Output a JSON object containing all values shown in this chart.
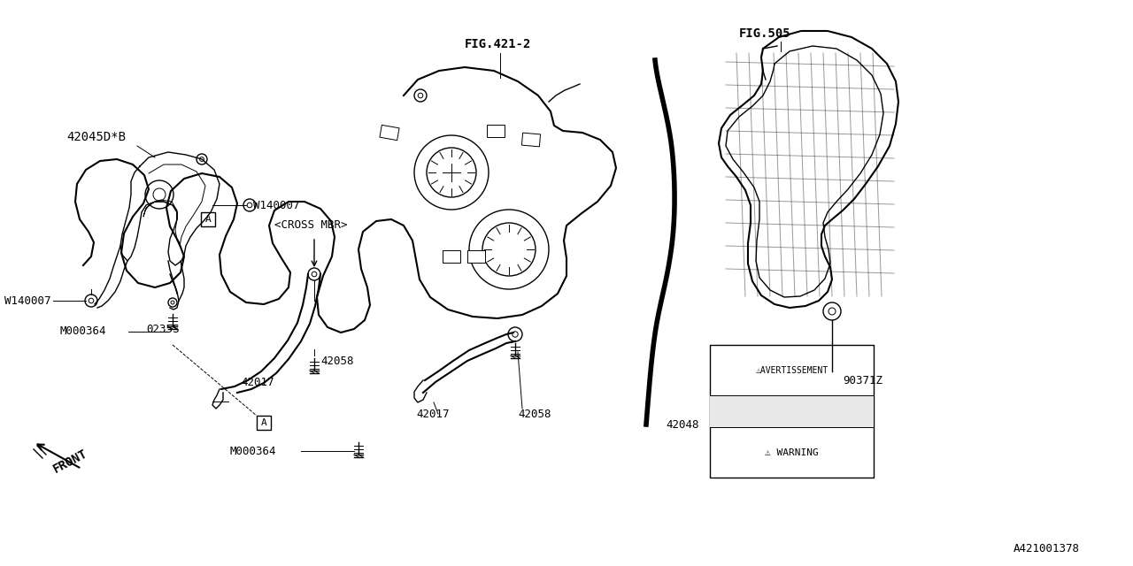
{
  "bg_color": "#FFFFFF",
  "line_color": "#000000",
  "fig_ref": "A421001378",
  "parts": {
    "fig421_label": "FIG.421-2",
    "fig505_label": "FIG.505",
    "label_42045D": "42045D*B",
    "label_cross_mbr": "<CROSS MBR>",
    "label_W140007_a": "W140007",
    "label_W140007_b": "W140007",
    "label_0235S": "0235S",
    "label_M000364_a": "M000364",
    "label_M000364_b": "M000364",
    "label_42058_a": "42058",
    "label_42058_b": "42058",
    "label_42017_a": "42017",
    "label_42017_b": "42017",
    "label_42048": "42048",
    "label_90371Z": "90371Z",
    "label_front": "FRONT",
    "warn_line1": "  WARNING",
    "warn_line2": " AVERTISSEMENT"
  }
}
